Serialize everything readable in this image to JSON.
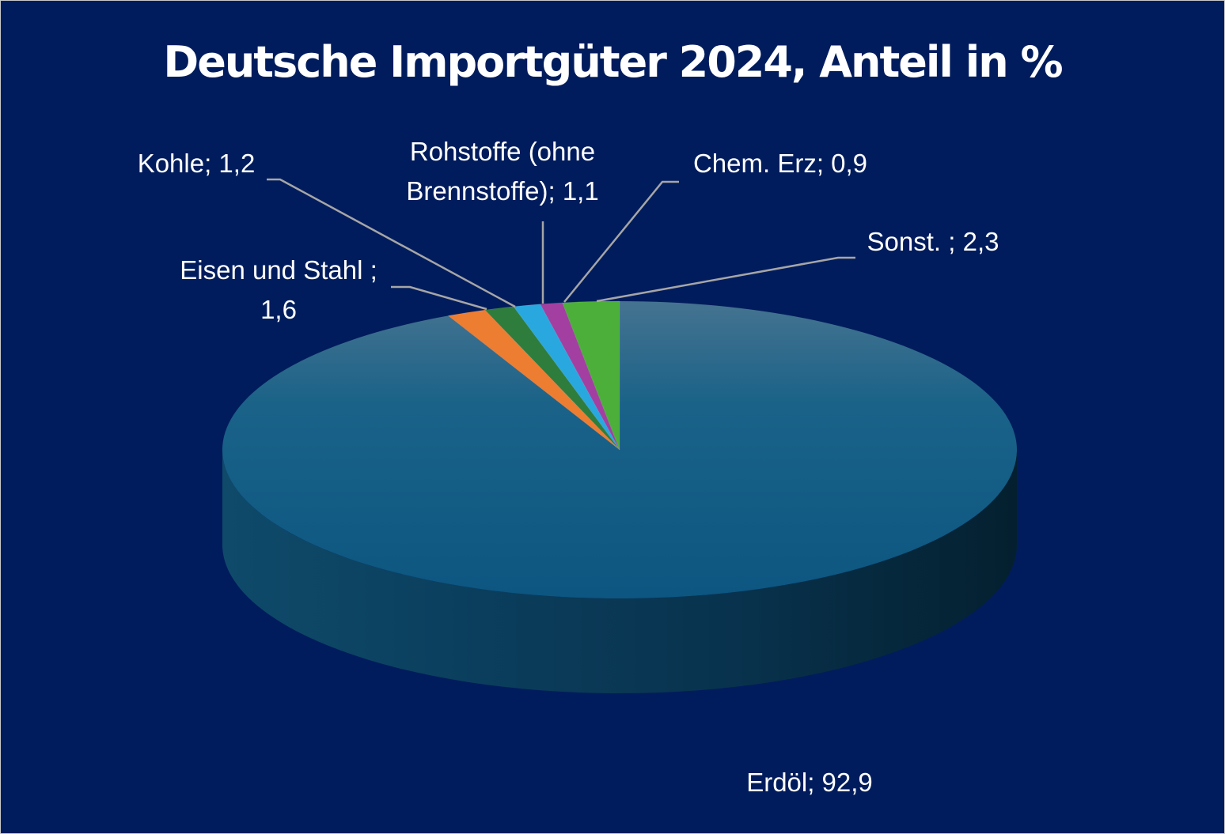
{
  "chart_data": {
    "type": "pie",
    "title": "Deutsche Importgüter 2024, Anteil in %",
    "slices": [
      {
        "name": "Erdöl",
        "value": 92.9,
        "label_lines": [
          "Erdöl; 92,9"
        ],
        "color": "#0f5f8a"
      },
      {
        "name": "Eisen und Stahl",
        "value": 1.6,
        "label_lines": [
          "Eisen und Stahl ;",
          "1,6"
        ],
        "color": "#ed7d31"
      },
      {
        "name": "Kohle",
        "value": 1.2,
        "label_lines": [
          "Kohle; 1,2"
        ],
        "color": "#2e7d3c"
      },
      {
        "name": "Rohstoffe (ohne Brennstoffe)",
        "value": 1.1,
        "label_lines": [
          "Rohstoffe (ohne",
          "Brennstoffe); 1,1"
        ],
        "color": "#29a8e0"
      },
      {
        "name": "Chem. Erz",
        "value": 0.9,
        "label_lines": [
          "Chem. Erz; 0,9"
        ],
        "color": "#a33fa0"
      },
      {
        "name": "Sonst.",
        "value": 2.3,
        "label_lines": [
          "Sonst. ; 2,3"
        ],
        "color": "#4caf3a"
      }
    ]
  }
}
